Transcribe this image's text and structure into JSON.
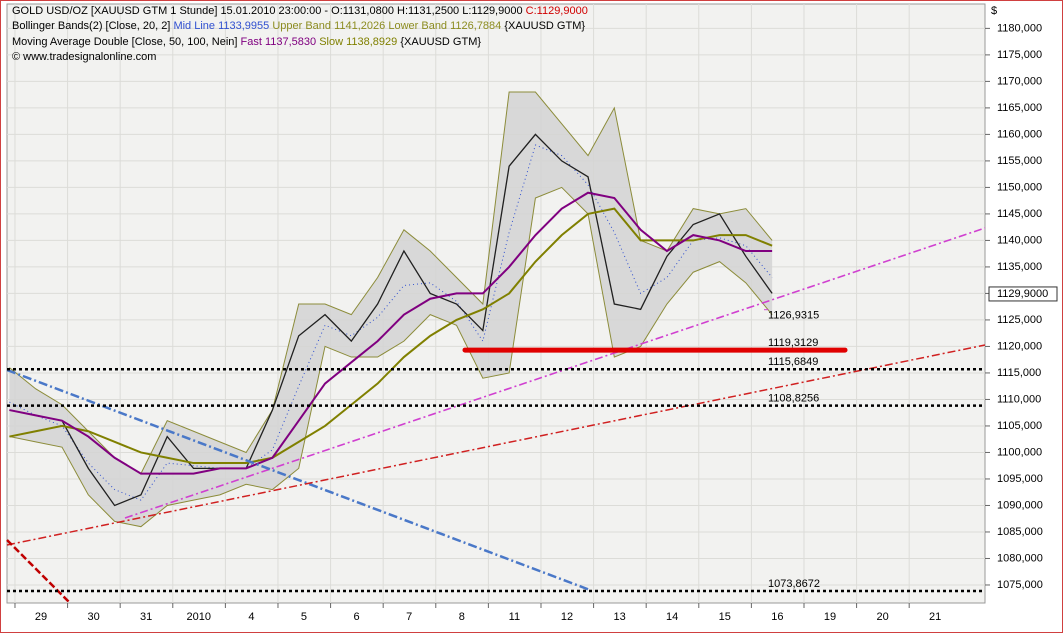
{
  "chart_data": {
    "type": "line",
    "header": {
      "line1": "GOLD USD/OZ [XAUUSD GTM  1 Stunde] 15.01.2010 23:00:00 - O:1131,0800 H:1131,2500 L:1129,9000",
      "close": "C:1129,9000",
      "bb_name": "Bollinger Bands(2) [Close, 20, 2]",
      "bb_mid": "Mid Line 1133,9955",
      "bb_upper": "Upper Band 1141,2026",
      "bb_lower": "Lower Band 1126,7884",
      "bb_symbol": "{XAUUSD GTM}",
      "ma_name": "Moving Average Double [Close, 50, 100, Nein]",
      "ma_fast": "Fast 1137,5830",
      "ma_slow": "Slow 1138,8929",
      "ma_symbol": "{XAUUSD GTM}",
      "copyright": "© www.tradesignalonline.com"
    },
    "currency": "$",
    "last_price_label": "1129,9000",
    "last_price": 1129.9,
    "x": [
      -0.6,
      -0.1,
      0.4,
      0.9,
      1.4,
      1.9,
      2.4,
      2.9,
      3.4,
      3.9,
      4.4,
      4.9,
      5.4,
      5.9,
      6.4,
      6.9,
      7.4,
      7.9,
      8.4,
      8.9,
      9.4,
      9.9,
      10.4,
      10.9,
      11.4,
      11.9,
      12.4,
      12.9,
      13.4,
      13.9
    ],
    "series": [
      {
        "name": "Upper Band",
        "color": "#8c8c3a",
        "values": [
          1116,
          1112,
          1109,
          1104,
          1099,
          1096,
          1106,
          1104,
          1102,
          1100,
          1108,
          1128,
          1128,
          1126,
          1133,
          1142,
          1138,
          1133,
          1128,
          1168,
          1168,
          1162,
          1156,
          1165,
          1140,
          1138,
          1146,
          1145,
          1146,
          1140
        ]
      },
      {
        "name": "Lower Band",
        "color": "#8c8c3a",
        "values": [
          1103,
          1102,
          1101,
          1092,
          1087,
          1086,
          1090,
          1091,
          1092,
          1094,
          1093,
          1097,
          1120,
          1118,
          1118,
          1121,
          1126,
          1124,
          1114,
          1115,
          1148,
          1150,
          1145,
          1118,
          1120,
          1128,
          1134,
          1136,
          1132,
          1126
        ]
      },
      {
        "name": "Mid Line",
        "color": "#3050d0",
        "values": [
          1109.5,
          1107,
          1105,
          1098,
          1093,
          1091,
          1098,
          1097.5,
          1097,
          1097,
          1100.5,
          1112.5,
          1124,
          1122,
          1125.5,
          1131.5,
          1132,
          1128.5,
          1121,
          1141.5,
          1158,
          1156,
          1150.5,
          1141.5,
          1130,
          1133,
          1140,
          1140.5,
          1139,
          1133
        ]
      },
      {
        "name": "Close",
        "color": "#202020",
        "values": [
          1108,
          1107,
          1106,
          1097,
          1090,
          1092,
          1103,
          1097,
          1097,
          1097,
          1108,
          1122,
          1126,
          1121,
          1128,
          1138,
          1130,
          1128,
          1123,
          1154,
          1160,
          1155,
          1152,
          1128,
          1127,
          1137,
          1143,
          1145,
          1137,
          1130
        ]
      },
      {
        "name": "Slow",
        "color": "#808000",
        "values": [
          1103,
          1104,
          1105,
          1104,
          1102,
          1100,
          1099,
          1098,
          1098,
          1098,
          1099,
          1102,
          1105,
          1109,
          1113,
          1118,
          1122,
          1125,
          1127,
          1130,
          1136,
          1141,
          1145,
          1146,
          1140,
          1140,
          1140,
          1141,
          1141,
          1139
        ]
      },
      {
        "name": "Fast",
        "color": "#800080",
        "values": [
          1108,
          1107,
          1106,
          1103,
          1099,
          1096,
          1096,
          1096,
          1097,
          1097,
          1099,
          1106,
          1113,
          1117,
          1121,
          1126,
          1129,
          1130,
          1130,
          1135,
          1141,
          1146,
          1149,
          1148,
          1142,
          1138,
          1141,
          1140,
          1138,
          1138
        ]
      }
    ],
    "levels": [
      {
        "label": "1126,9315",
        "value": 1126.9315,
        "color": "#d040d0",
        "style": "label"
      },
      {
        "label": "1119,3129",
        "value": 1119.3129,
        "color": "#e00000",
        "style": "thick"
      },
      {
        "label": "1115,6849",
        "value": 1115.6849,
        "color": "#000000",
        "style": "dotted"
      },
      {
        "label": "1108,8256",
        "value": 1108.8256,
        "color": "#000000",
        "style": "dotted"
      },
      {
        "label": "1073,8672",
        "value": 1073.8672,
        "color": "#000000",
        "style": "dotted"
      }
    ],
    "xlim": [
      -0.646,
      17.947
    ],
    "xticks": [
      {
        "value": 0,
        "label": "29"
      },
      {
        "value": 1,
        "label": "30"
      },
      {
        "value": 2,
        "label": "31"
      },
      {
        "value": 3,
        "label": "2010"
      },
      {
        "value": 4,
        "label": "4"
      },
      {
        "value": 5,
        "label": "5"
      },
      {
        "value": 6,
        "label": "6"
      },
      {
        "value": 7,
        "label": "7"
      },
      {
        "value": 8,
        "label": "8"
      },
      {
        "value": 9,
        "label": "11"
      },
      {
        "value": 10,
        "label": "12"
      },
      {
        "value": 11,
        "label": "13"
      },
      {
        "value": 12,
        "label": "14"
      },
      {
        "value": 13,
        "label": "15"
      },
      {
        "value": 14,
        "label": "16"
      },
      {
        "value": 15,
        "label": "19"
      },
      {
        "value": 16,
        "label": "20"
      },
      {
        "value": 17,
        "label": "21"
      }
    ],
    "ylim": [
      1071.6,
      1184.6
    ],
    "yticks": [
      {
        "value": 1075,
        "label": "1075,000"
      },
      {
        "value": 1080,
        "label": "1080,000"
      },
      {
        "value": 1085,
        "label": "1085,000"
      },
      {
        "value": 1090,
        "label": "1090,000"
      },
      {
        "value": 1095,
        "label": "1095,000"
      },
      {
        "value": 1100,
        "label": "1100,000"
      },
      {
        "value": 1105,
        "label": "1105,000"
      },
      {
        "value": 1110,
        "label": "1110,000"
      },
      {
        "value": 1115,
        "label": "1115,000"
      },
      {
        "value": 1120,
        "label": "1120,000"
      },
      {
        "value": 1125,
        "label": "1125,000"
      },
      {
        "value": 1130,
        "label": "1130,000"
      },
      {
        "value": 1135,
        "label": "1135,000"
      },
      {
        "value": 1140,
        "label": "1140,000"
      },
      {
        "value": 1145,
        "label": "1145,000"
      },
      {
        "value": 1150,
        "label": "1150,000"
      },
      {
        "value": 1155,
        "label": "1155,000"
      },
      {
        "value": 1160,
        "label": "1160,000"
      },
      {
        "value": 1165,
        "label": "1165,000"
      },
      {
        "value": 1170,
        "label": "1170,000"
      },
      {
        "value": 1175,
        "label": "1175,000"
      },
      {
        "value": 1180,
        "label": "1180,000"
      }
    ],
    "grid": true,
    "band_color": "#d4d4d4"
  }
}
